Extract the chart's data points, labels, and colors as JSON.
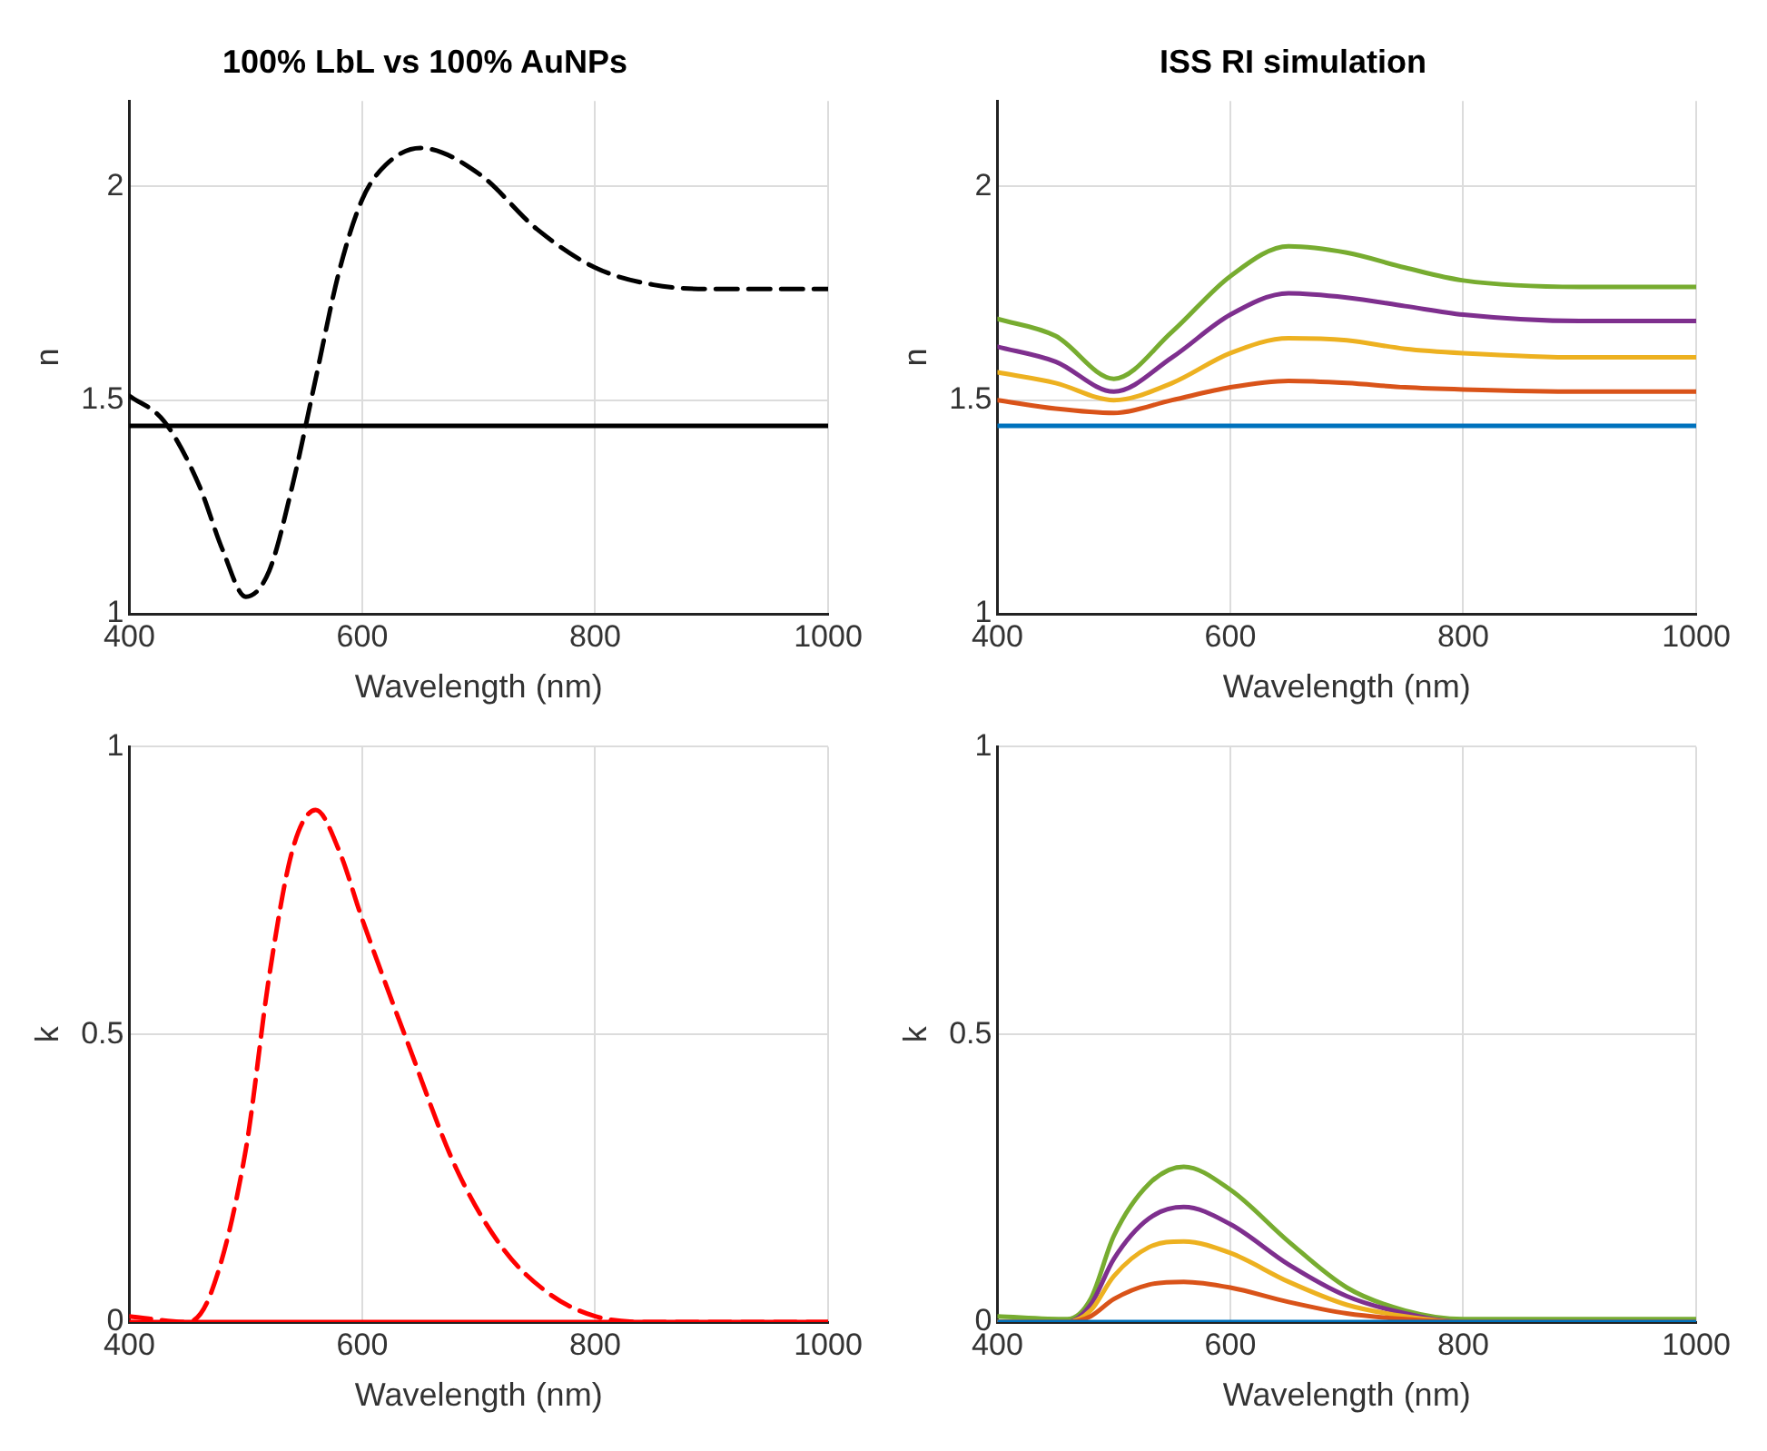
{
  "chart_data": [
    {
      "type": "line",
      "title": "100% LbL vs 100% AuNPs",
      "xlabel": "Wavelength (nm)",
      "ylabel": "n",
      "xlim": [
        400,
        1000
      ],
      "xticks": [
        400,
        600,
        800,
        1000
      ],
      "ylim": [
        1,
        2.2
      ],
      "yticks": [
        1,
        1.5,
        2
      ],
      "grid": true,
      "marker": "none",
      "series": [
        {
          "color": "#000000",
          "line_style": "solid",
          "x": [
            400,
            1000
          ],
          "values": [
            1.44,
            1.44
          ]
        },
        {
          "color": "#000000",
          "line_style": "dashed",
          "x": [
            400,
            430,
            460,
            480,
            500,
            520,
            540,
            560,
            580,
            600,
            620,
            650,
            700,
            750,
            800,
            850,
            900,
            1000
          ],
          "values": [
            1.51,
            1.45,
            1.3,
            1.15,
            1.04,
            1.1,
            1.3,
            1.55,
            1.8,
            1.97,
            2.05,
            2.09,
            2.03,
            1.9,
            1.81,
            1.77,
            1.76,
            1.76
          ]
        }
      ]
    },
    {
      "type": "line",
      "title": "ISS RI simulation",
      "xlabel": "Wavelength (nm)",
      "ylabel": "n",
      "xlim": [
        400,
        1000
      ],
      "xticks": [
        400,
        600,
        800,
        1000
      ],
      "ylim": [
        1,
        2.2
      ],
      "yticks": [
        1,
        1.5,
        2
      ],
      "grid": true,
      "marker": "none",
      "x": [
        400,
        450,
        500,
        550,
        600,
        650,
        700,
        750,
        800,
        900,
        1000
      ],
      "series": [
        {
          "color": "#0072bd",
          "values": [
            1.44,
            1.44,
            1.44,
            1.44,
            1.44,
            1.44,
            1.44,
            1.44,
            1.44,
            1.44,
            1.44
          ]
        },
        {
          "color": "#d95319",
          "values": [
            1.5,
            1.48,
            1.47,
            1.5,
            1.53,
            1.545,
            1.54,
            1.53,
            1.525,
            1.52,
            1.52
          ]
        },
        {
          "color": "#edb120",
          "values": [
            1.565,
            1.54,
            1.5,
            1.54,
            1.61,
            1.645,
            1.64,
            1.62,
            1.61,
            1.6,
            1.6
          ]
        },
        {
          "color": "#7e2f8e",
          "values": [
            1.625,
            1.59,
            1.52,
            1.6,
            1.7,
            1.75,
            1.74,
            1.72,
            1.7,
            1.685,
            1.685
          ]
        },
        {
          "color": "#77ac30",
          "values": [
            1.69,
            1.65,
            1.55,
            1.66,
            1.79,
            1.86,
            1.845,
            1.81,
            1.78,
            1.765,
            1.765
          ]
        }
      ]
    },
    {
      "type": "line",
      "xlabel": "Wavelength (nm)",
      "ylabel": "k",
      "xlim": [
        400,
        1000
      ],
      "xticks": [
        400,
        600,
        800,
        1000
      ],
      "ylim": [
        0,
        1
      ],
      "yticks": [
        0,
        0.5,
        1
      ],
      "grid": true,
      "marker": "none",
      "series": [
        {
          "color": "#ff0000",
          "line_style": "solid",
          "x": [
            400,
            1000
          ],
          "values": [
            0,
            0
          ]
        },
        {
          "color": "#ff0000",
          "line_style": "dashed",
          "x": [
            400,
            450,
            470,
            500,
            520,
            540,
            560,
            580,
            600,
            640,
            680,
            720,
            760,
            800,
            850,
            1000
          ],
          "values": [
            0.01,
            0,
            0.05,
            0.3,
            0.6,
            0.82,
            0.89,
            0.82,
            0.7,
            0.48,
            0.27,
            0.13,
            0.05,
            0.01,
            0,
            0
          ]
        }
      ]
    },
    {
      "type": "line",
      "xlabel": "Wavelength (nm)",
      "ylabel": "k",
      "xlim": [
        400,
        1000
      ],
      "xticks": [
        400,
        600,
        800,
        1000
      ],
      "ylim": [
        0,
        1
      ],
      "yticks": [
        0,
        0.5,
        1
      ],
      "grid": true,
      "marker": "none",
      "x": [
        400,
        460,
        480,
        500,
        530,
        560,
        600,
        650,
        700,
        750,
        800,
        1000
      ],
      "series": [
        {
          "color": "#0072bd",
          "values": [
            0,
            0,
            0,
            0,
            0,
            0,
            0,
            0,
            0,
            0,
            0,
            0
          ]
        },
        {
          "color": "#d95319",
          "values": [
            0,
            0,
            0.01,
            0.04,
            0.065,
            0.07,
            0.06,
            0.035,
            0.015,
            0.005,
            0,
            0
          ]
        },
        {
          "color": "#edb120",
          "values": [
            0,
            0,
            0.02,
            0.08,
            0.13,
            0.14,
            0.12,
            0.07,
            0.03,
            0.01,
            0,
            0
          ]
        },
        {
          "color": "#7e2f8e",
          "values": [
            0,
            0,
            0.03,
            0.11,
            0.18,
            0.2,
            0.17,
            0.1,
            0.045,
            0.015,
            0,
            0
          ]
        },
        {
          "color": "#77ac30",
          "values": [
            0.01,
            0.005,
            0.04,
            0.15,
            0.24,
            0.27,
            0.23,
            0.14,
            0.06,
            0.02,
            0.005,
            0.005
          ]
        }
      ]
    }
  ]
}
